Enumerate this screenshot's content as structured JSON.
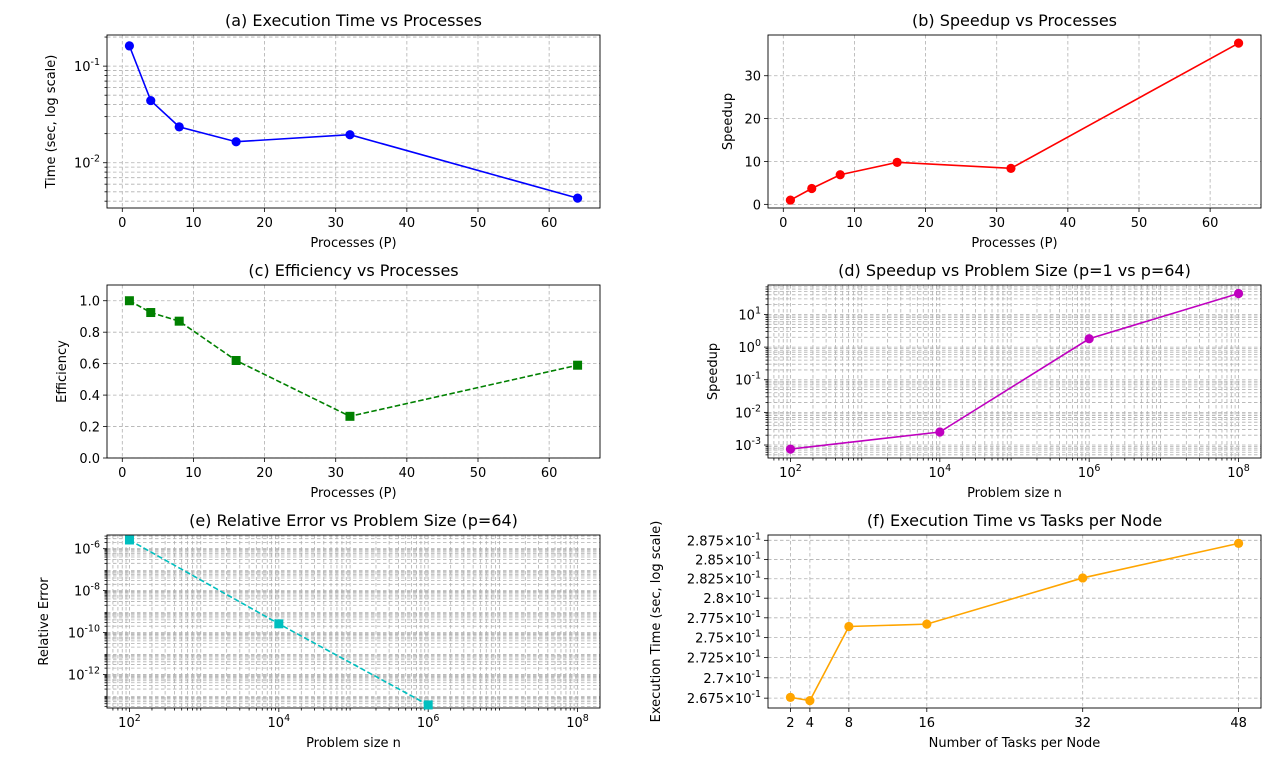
{
  "chart_data": [
    {
      "id": "a",
      "type": "line",
      "title": "(a) Execution Time vs Processes",
      "xlabel": "Processes (P)",
      "ylabel": "Time (sec, log scale)",
      "yscale": "log",
      "xlim": [
        -2.15,
        67.15
      ],
      "ylim": [
        0.0034,
        0.21
      ],
      "xticks": [
        0,
        10,
        20,
        30,
        40,
        50,
        60
      ],
      "xticklabels": [
        "0",
        "10",
        "20",
        "30",
        "40",
        "50",
        "60"
      ],
      "yticks": [
        0.01,
        0.1
      ],
      "yticklabels": [
        "10^-2",
        "10^-1"
      ],
      "grid": "both (major and minor on y)",
      "series": [
        {
          "color": "#0000ff",
          "marker": "circle",
          "linestyle": "solid",
          "x": [
            1,
            4,
            8,
            16,
            32,
            64
          ],
          "y": [
            0.162,
            0.044,
            0.0235,
            0.0165,
            0.0195,
            0.0043
          ]
        }
      ]
    },
    {
      "id": "b",
      "type": "line",
      "title": "(b) Speedup vs Processes",
      "xlabel": "Processes (P)",
      "ylabel": "Speedup",
      "yscale": "linear",
      "xlim": [
        -2.15,
        67.15
      ],
      "ylim": [
        -0.85,
        39.5
      ],
      "xticks": [
        0,
        10,
        20,
        30,
        40,
        50,
        60
      ],
      "xticklabels": [
        "0",
        "10",
        "20",
        "30",
        "40",
        "50",
        "60"
      ],
      "yticks": [
        0,
        10,
        20,
        30
      ],
      "yticklabels": [
        "0",
        "10",
        "20",
        "30"
      ],
      "grid": "both",
      "series": [
        {
          "color": "#ff0000",
          "marker": "circle",
          "linestyle": "solid",
          "x": [
            1,
            4,
            8,
            16,
            32,
            64
          ],
          "y": [
            1.0,
            3.7,
            6.9,
            9.8,
            8.4,
            37.6
          ]
        }
      ]
    },
    {
      "id": "c",
      "type": "line",
      "title": "(c) Efficiency vs Processes",
      "xlabel": "Processes (P)",
      "ylabel": "Efficiency",
      "yscale": "linear",
      "xlim": [
        -2.15,
        67.15
      ],
      "ylim": [
        0.0,
        1.1
      ],
      "xticks": [
        0,
        10,
        20,
        30,
        40,
        50,
        60
      ],
      "xticklabels": [
        "0",
        "10",
        "20",
        "30",
        "40",
        "50",
        "60"
      ],
      "yticks": [
        0.0,
        0.2,
        0.4,
        0.6,
        0.8,
        1.0
      ],
      "yticklabels": [
        "0.0",
        "0.2",
        "0.4",
        "0.6",
        "0.8",
        "1.0"
      ],
      "grid": "both",
      "series": [
        {
          "color": "#008000",
          "marker": "square",
          "linestyle": "dashed",
          "x": [
            1,
            4,
            8,
            16,
            32,
            64
          ],
          "y": [
            1.0,
            0.925,
            0.87,
            0.62,
            0.265,
            0.59
          ]
        }
      ]
    },
    {
      "id": "d",
      "type": "line",
      "title": "(d) Speedup vs Problem Size (p=1 vs p=64)",
      "xlabel": "Problem size n",
      "ylabel": "Speedup",
      "xscale": "log",
      "yscale": "log",
      "xlim": [
        50,
        200000000
      ],
      "ylim": [
        0.0004,
        80
      ],
      "xticks": [
        100,
        10000,
        1000000,
        100000000
      ],
      "xticklabels": [
        "10^2",
        "10^4",
        "10^6",
        "10^8"
      ],
      "yticks": [
        0.001,
        0.01,
        0.1,
        1,
        10
      ],
      "yticklabels": [
        "10^-3",
        "10^-2",
        "10^-1",
        "10^0",
        "10^1"
      ],
      "grid": "both (major and minor)",
      "series": [
        {
          "color": "#bf00bf",
          "marker": "circle",
          "linestyle": "solid",
          "x": [
            100,
            10000,
            1000000,
            100000000
          ],
          "y": [
            0.00075,
            0.0025,
            1.8,
            44
          ]
        }
      ]
    },
    {
      "id": "e",
      "type": "line",
      "title": "(e) Relative Error vs Problem Size (p=64)",
      "xlabel": "Problem size n",
      "ylabel": "Relative Error",
      "xscale": "log",
      "yscale": "log",
      "xlim": [
        50,
        200000000
      ],
      "ylim": [
        2.5e-14,
        4.5e-06
      ],
      "xticks": [
        100,
        10000,
        1000000,
        100000000
      ],
      "xticklabels": [
        "10^2",
        "10^4",
        "10^6",
        "10^8"
      ],
      "yticks": [
        1e-12,
        1e-10,
        1e-08,
        1e-06
      ],
      "yticklabels": [
        "10^-12",
        "10^-10",
        "10^-8",
        "10^-6"
      ],
      "grid": "both (major and minor)",
      "series": [
        {
          "color": "#00bfbf",
          "marker": "square",
          "linestyle": "dashed",
          "x": [
            100,
            10000,
            1000000
          ],
          "y": [
            2.6e-06,
            2.6e-10,
            3.5e-14
          ]
        }
      ]
    },
    {
      "id": "f",
      "type": "line",
      "title": "(f) Execution Time vs Tasks per Node",
      "xlabel": "Number of Tasks per Node",
      "ylabel": "Execution Time (sec, log scale)",
      "yscale": "log",
      "xlim": [
        -0.3,
        50.3
      ],
      "ylim": [
        0.2663,
        0.2882
      ],
      "xticks": [
        2,
        4,
        8,
        16,
        32,
        48
      ],
      "xticklabels": [
        "2",
        "4",
        "8",
        "16",
        "32",
        "48"
      ],
      "yticks": [
        0.2675,
        0.27,
        0.2725,
        0.275,
        0.2775,
        0.28,
        0.2825,
        0.285,
        0.2875
      ],
      "yticklabels": [
        "2.675×10^-1",
        "2.7×10^-1",
        "2.725×10^-1",
        "2.75×10^-1",
        "2.775×10^-1",
        "2.8×10^-1",
        "2.825×10^-1",
        "2.85×10^-1",
        "2.875×10^-1"
      ],
      "grid": "both",
      "series": [
        {
          "color": "#ffa500",
          "marker": "circle",
          "linestyle": "solid",
          "x": [
            2,
            4,
            8,
            16,
            32,
            48
          ],
          "y": [
            0.2676,
            0.2672,
            0.2764,
            0.2767,
            0.2826,
            0.2871
          ]
        }
      ]
    }
  ]
}
